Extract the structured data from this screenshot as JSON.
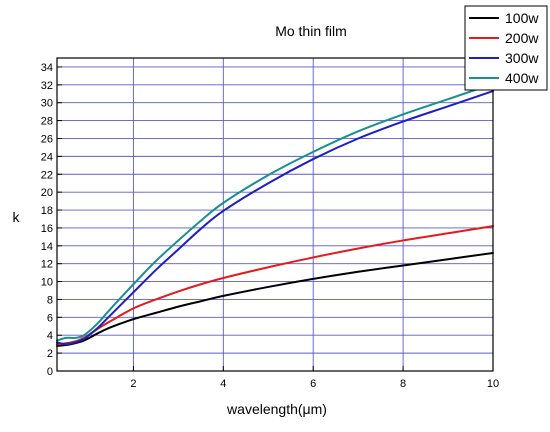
{
  "chart_data": {
    "type": "line",
    "title": "Mo thin film",
    "xlabel": "wavelength(μm)",
    "ylabel": "k",
    "xlim": [
      0.3,
      10
    ],
    "ylim": [
      0,
      35
    ],
    "xticks": [
      2,
      4,
      6,
      8,
      10
    ],
    "yticks": [
      0,
      2,
      4,
      6,
      8,
      10,
      12,
      14,
      16,
      18,
      20,
      22,
      24,
      26,
      28,
      30,
      32,
      34
    ],
    "grid": true,
    "legend_position": "top-right",
    "series": [
      {
        "name": "100w",
        "color": "#000000",
        "points": [
          [
            0.3,
            2.8
          ],
          [
            0.5,
            2.9
          ],
          [
            0.7,
            3.1
          ],
          [
            0.9,
            3.4
          ],
          [
            1.2,
            4.2
          ],
          [
            1.5,
            4.9
          ],
          [
            2.0,
            5.8
          ],
          [
            2.5,
            6.5
          ],
          [
            3.0,
            7.2
          ],
          [
            3.5,
            7.8
          ],
          [
            4.0,
            8.4
          ],
          [
            5.0,
            9.4
          ],
          [
            6.0,
            10.3
          ],
          [
            7.0,
            11.1
          ],
          [
            8.0,
            11.8
          ],
          [
            9.0,
            12.5
          ],
          [
            10.0,
            13.2
          ]
        ]
      },
      {
        "name": "200w",
        "color": "#e41a1c",
        "points": [
          [
            0.3,
            3.0
          ],
          [
            0.5,
            3.1
          ],
          [
            0.7,
            3.3
          ],
          [
            0.9,
            3.7
          ],
          [
            1.2,
            4.7
          ],
          [
            1.5,
            5.6
          ],
          [
            2.0,
            7.0
          ],
          [
            2.5,
            8.0
          ],
          [
            3.0,
            8.9
          ],
          [
            3.5,
            9.7
          ],
          [
            4.0,
            10.4
          ],
          [
            5.0,
            11.6
          ],
          [
            6.0,
            12.7
          ],
          [
            7.0,
            13.7
          ],
          [
            8.0,
            14.6
          ],
          [
            9.0,
            15.4
          ],
          [
            10.0,
            16.2
          ]
        ]
      },
      {
        "name": "300w",
        "color": "#1f1fbf",
        "points": [
          [
            0.3,
            3.2
          ],
          [
            0.5,
            3.0
          ],
          [
            0.7,
            3.2
          ],
          [
            0.9,
            3.6
          ],
          [
            1.2,
            4.8
          ],
          [
            1.5,
            6.3
          ],
          [
            2.0,
            8.8
          ],
          [
            2.5,
            11.3
          ],
          [
            3.0,
            13.6
          ],
          [
            3.5,
            15.9
          ],
          [
            4.0,
            17.9
          ],
          [
            5.0,
            21.0
          ],
          [
            6.0,
            23.7
          ],
          [
            7.0,
            26.0
          ],
          [
            8.0,
            27.9
          ],
          [
            9.0,
            29.6
          ],
          [
            10.0,
            31.3
          ]
        ]
      },
      {
        "name": "400w",
        "color": "#1a8f8f",
        "points": [
          [
            0.3,
            3.4
          ],
          [
            0.5,
            3.7
          ],
          [
            0.7,
            3.7
          ],
          [
            0.9,
            4.0
          ],
          [
            1.2,
            5.3
          ],
          [
            1.5,
            7.0
          ],
          [
            2.0,
            9.7
          ],
          [
            2.5,
            12.3
          ],
          [
            3.0,
            14.6
          ],
          [
            3.5,
            16.8
          ],
          [
            4.0,
            18.8
          ],
          [
            5.0,
            21.9
          ],
          [
            6.0,
            24.5
          ],
          [
            7.0,
            26.8
          ],
          [
            8.0,
            28.7
          ],
          [
            9.0,
            30.4
          ],
          [
            10.0,
            32.1
          ]
        ]
      }
    ]
  }
}
